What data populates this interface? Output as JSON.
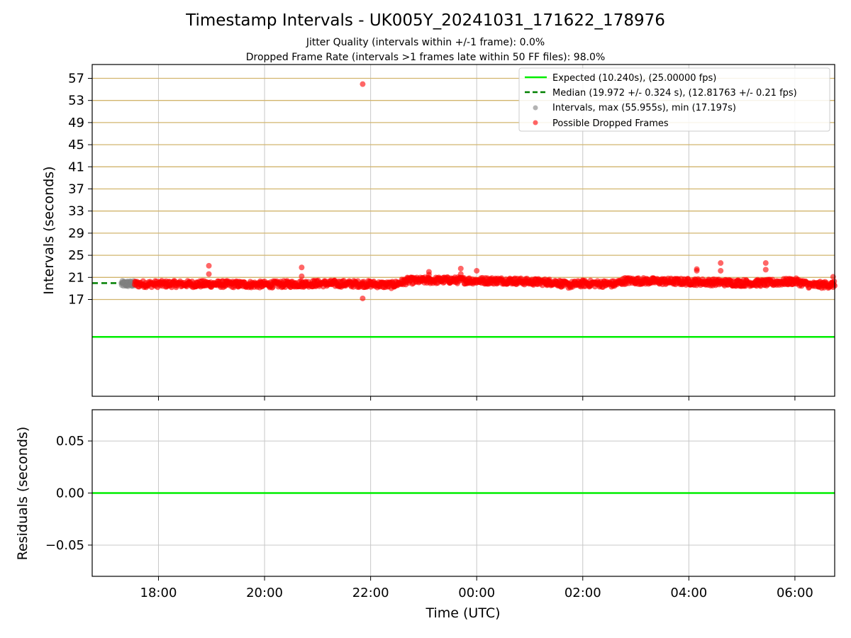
{
  "figure": {
    "title": "Timestamp Intervals - UK005Y_20241031_171622_178976",
    "subtitle_1": "Jitter Quality (intervals within +/-1 frame): 0.0%",
    "subtitle_2": "Dropped Frame Rate (intervals >1 frames late within 50 FF files): 98.0%"
  },
  "colors": {
    "expected": "#00ee00",
    "median": "#008000",
    "intervals": "#808080",
    "dropped": "#ff0000",
    "hgrid": "#d2b56e",
    "vgrid": "#c8c8c8"
  },
  "chart_data": [
    {
      "type": "scatter",
      "ylabel": "Intervals (seconds)",
      "xlabel": "",
      "x_unit": "hours since 00:00 UTC 2024-11-01",
      "xlim": [
        -7.25,
        6.75
      ],
      "ylim": [
        -0.5,
        59.5
      ],
      "x_ticks": [
        -6,
        -4,
        -2,
        0,
        2,
        4,
        6
      ],
      "x_tick_labels": [
        "18:00",
        "20:00",
        "22:00",
        "00:00",
        "02:00",
        "04:00",
        "06:00"
      ],
      "y_ticks": [
        17,
        21,
        25,
        29,
        33,
        37,
        41,
        45,
        49,
        53,
        57
      ],
      "y_tick_labels": [
        "17",
        "21",
        "25",
        "29",
        "33",
        "37",
        "41",
        "45",
        "49",
        "53",
        "57"
      ],
      "grid": true,
      "legend_position": "top-right",
      "legend": [
        {
          "label": "Expected (10.240s), (25.00000 fps)",
          "kind": "line",
          "color": "#00ee00"
        },
        {
          "label": "Median (19.972 +/- 0.324 s), (12.81763 +/- 0.21 fps)",
          "kind": "dashed",
          "color": "#008000"
        },
        {
          "label": "Intervals, max (55.955s), min (17.197s)",
          "kind": "marker",
          "color": "#808080"
        },
        {
          "label": "Possible Dropped Frames",
          "kind": "marker",
          "color": "#ff0000"
        }
      ],
      "expected_interval": 10.24,
      "median_interval": 19.972,
      "median_extent_x": [
        -7.25,
        -6.4
      ],
      "normal_intervals_range_x": [
        -6.7,
        -6.45
      ],
      "dropped_baseline": [
        [
          -6.45,
          19.8
        ],
        [
          -5.0,
          19.8
        ],
        [
          -4.0,
          19.7
        ],
        [
          -3.0,
          19.9
        ],
        [
          -2.0,
          19.8
        ],
        [
          -1.6,
          19.6
        ],
        [
          -1.3,
          20.4
        ],
        [
          -0.5,
          20.5
        ],
        [
          0.0,
          20.4
        ],
        [
          0.6,
          20.4
        ],
        [
          1.0,
          20.2
        ],
        [
          1.5,
          20.1
        ],
        [
          1.7,
          19.6
        ],
        [
          2.0,
          19.9
        ],
        [
          2.6,
          19.8
        ],
        [
          2.8,
          20.4
        ],
        [
          4.0,
          20.2
        ],
        [
          5.0,
          20.0
        ],
        [
          5.5,
          20.0
        ],
        [
          6.0,
          20.3
        ],
        [
          6.3,
          19.6
        ],
        [
          6.75,
          19.7
        ]
      ],
      "dropped_outliers": [
        [
          -5.05,
          23.1
        ],
        [
          -5.05,
          21.6
        ],
        [
          -3.3,
          22.8
        ],
        [
          -3.3,
          21.2
        ],
        [
          -2.15,
          55.955
        ],
        [
          -2.15,
          17.197
        ],
        [
          -0.9,
          22.0
        ],
        [
          -0.9,
          21.5
        ],
        [
          -0.3,
          22.6
        ],
        [
          -0.3,
          21.6
        ],
        [
          0.0,
          22.2
        ],
        [
          4.15,
          22.5
        ],
        [
          4.15,
          22.2
        ],
        [
          4.6,
          23.6
        ],
        [
          4.6,
          22.2
        ],
        [
          5.45,
          23.6
        ],
        [
          5.45,
          22.4
        ],
        [
          6.72,
          21.1
        ]
      ]
    },
    {
      "type": "line",
      "ylabel": "Residuals (seconds)",
      "xlabel": "Time (UTC)",
      "xlim": [
        -7.25,
        6.75
      ],
      "ylim": [
        -0.08,
        0.08
      ],
      "x_ticks": [
        -6,
        -4,
        -2,
        0,
        2,
        4,
        6
      ],
      "x_tick_labels": [
        "18:00",
        "20:00",
        "22:00",
        "00:00",
        "02:00",
        "04:00",
        "06:00"
      ],
      "y_ticks": [
        0.05,
        0.0,
        -0.05
      ],
      "y_tick_labels": [
        "0.05",
        "0.00",
        "−0.05"
      ],
      "grid": true,
      "series": [
        {
          "values": [
            [
              -7.25,
              0.0
            ],
            [
              6.75,
              0.0
            ]
          ],
          "color": "#00ee00"
        }
      ]
    }
  ]
}
